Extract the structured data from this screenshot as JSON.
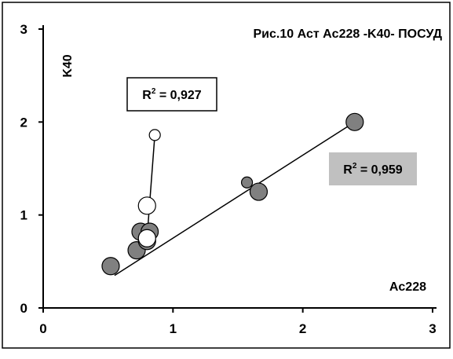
{
  "chart_data": {
    "type": "scatter",
    "title": "Рис.10  Аст Ac228 -K40- ПОСУД",
    "xlabel": "Ac228",
    "ylabel": "K40",
    "xlim": [
      0,
      3
    ],
    "ylim": [
      0,
      3
    ],
    "xticks": [
      "0",
      "1",
      "2",
      "3"
    ],
    "yticks": [
      "0",
      "1",
      "2",
      "3"
    ],
    "grid": false,
    "series": [
      {
        "marker": "filled-gray-circle",
        "color": "#808080",
        "points": [
          {
            "x": 0.52,
            "y": 0.45,
            "size": "large"
          },
          {
            "x": 0.72,
            "y": 0.62,
            "size": "large"
          },
          {
            "x": 0.75,
            "y": 0.82,
            "size": "large"
          },
          {
            "x": 0.8,
            "y": 0.72,
            "size": "large"
          },
          {
            "x": 0.82,
            "y": 0.82,
            "size": "large"
          },
          {
            "x": 1.57,
            "y": 1.35,
            "size": "small"
          },
          {
            "x": 1.66,
            "y": 1.25,
            "size": "large"
          },
          {
            "x": 2.4,
            "y": 2.0,
            "size": "large"
          }
        ],
        "trendline": {
          "x": [
            0.55,
            2.4
          ],
          "y": [
            0.35,
            2.0
          ]
        },
        "r2_label": "R2 = 0,959",
        "r2_box": "gray"
      },
      {
        "marker": "open-circle",
        "color": "#000000",
        "points": [
          {
            "x": 0.8,
            "y": 0.75,
            "size": "large"
          },
          {
            "x": 0.8,
            "y": 1.1,
            "size": "large"
          },
          {
            "x": 0.86,
            "y": 1.86,
            "size": "small"
          }
        ],
        "trendline": {
          "x": [
            0.8,
            0.86
          ],
          "y": [
            0.75,
            1.86
          ]
        },
        "r2_label": "R2 = 0,927",
        "r2_box": "white"
      }
    ]
  }
}
